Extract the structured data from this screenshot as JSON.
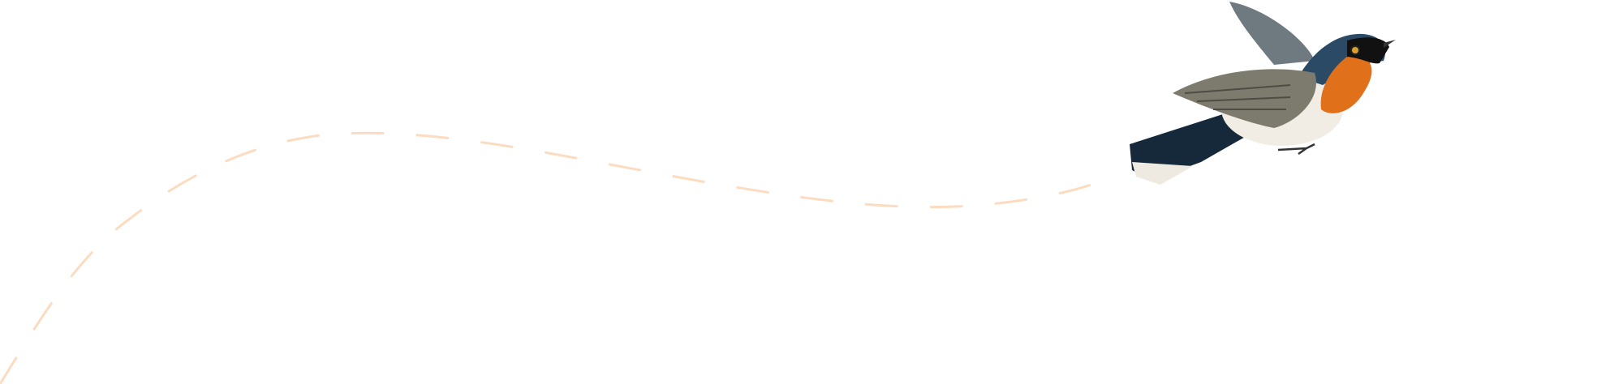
{
  "colors": {
    "background": "#ffffff",
    "flight_path": "#fcdcc0",
    "bird_throat": "#e0701a",
    "bird_back": "#1d3448",
    "bird_wing": "#7d7a6e",
    "bird_belly": "#f1ede4"
  },
  "icons": {
    "bird": "bird-illustration",
    "path": "dashed-flight-path"
  }
}
